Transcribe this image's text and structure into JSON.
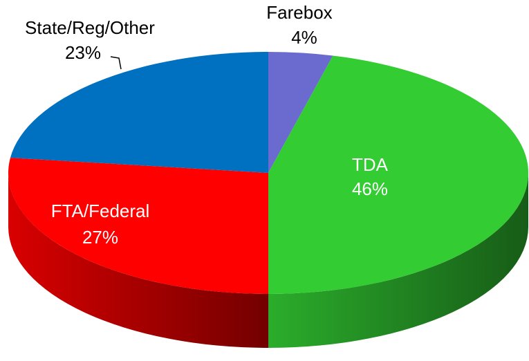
{
  "chart_data": {
    "type": "pie",
    "categories": [
      "Farebox",
      "TDA",
      "FTA/Federal",
      "State/Reg/Other"
    ],
    "values": [
      4,
      46,
      27,
      23
    ],
    "value_labels": [
      "4%",
      "46%",
      "27%",
      "23%"
    ],
    "colors": [
      "#6b6bcf",
      "#33cc33",
      "#ff0000",
      "#0070c0"
    ],
    "start": "top",
    "direction": "clockwise",
    "three_d": true
  }
}
